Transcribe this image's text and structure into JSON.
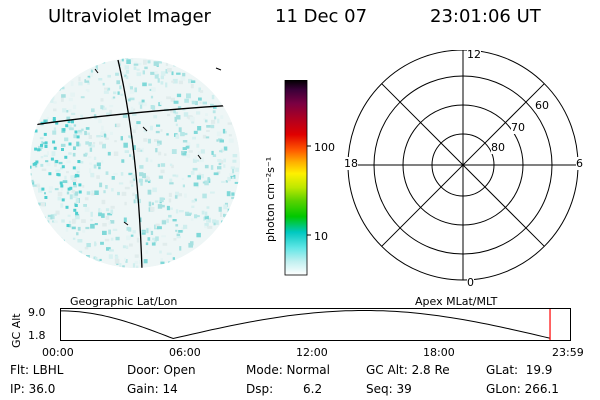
{
  "header": {
    "title": "Ultraviolet Imager",
    "date": "11 Dec 07",
    "time": "23:01:06 UT"
  },
  "colorbar": {
    "unit_label": "photon cm⁻²s⁻¹",
    "ticks": [
      "100",
      "10"
    ],
    "colors": [
      "#000000",
      "#3a0038",
      "#7a0042",
      "#b00020",
      "#e00000",
      "#ff5a00",
      "#ffae00",
      "#fff000",
      "#bfe800",
      "#5ad200",
      "#00c800",
      "#00c8c0",
      "#60e6e6",
      "#c0f0f0",
      "#ffffff"
    ]
  },
  "polar": {
    "mlt_labels": {
      "top": "12",
      "bottom": "0",
      "left": "18",
      "right": "6"
    },
    "lat_labels": [
      "60",
      "70",
      "80"
    ]
  },
  "timeline": {
    "left_title": "Geographic Lat/Lon",
    "right_title": "Apex MLat/MLT",
    "axis_label": "GC Alt",
    "y_ticks": [
      "9.0",
      "1.8"
    ],
    "x_ticks": [
      "00:00",
      "06:00",
      "12:00",
      "18:00",
      "23:59"
    ],
    "orbit_curve": [
      {
        "h": 0.0,
        "alt": 8.9
      },
      {
        "h": 5.3,
        "alt": 1.8
      },
      {
        "h": 14.3,
        "alt": 9.0
      },
      {
        "h": 23.0,
        "alt": 1.9
      }
    ],
    "current_time_h": 23.02,
    "marker_color": "#ff0000"
  },
  "status": {
    "flt": "Flt: LBHL",
    "door": "Door: Open",
    "mode": "Mode: Normal",
    "gc_alt": "GC Alt: 2.8 Re",
    "glat": "GLat:  19.9",
    "ip": "IP: 36.0",
    "gain": "Gain: 14",
    "dsp_label": "Dsp:",
    "dsp_value": "6.2",
    "seq": "Seq: 39",
    "glon": "GLon: 266.1"
  }
}
